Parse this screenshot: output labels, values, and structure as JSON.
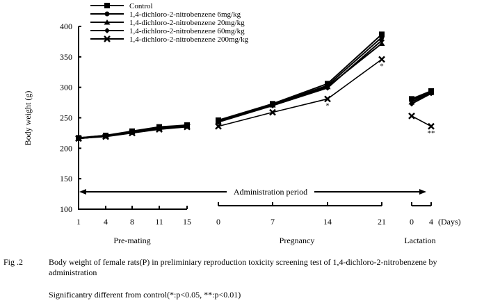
{
  "chart_data": {
    "type": "line",
    "ylabel": "Body weight (g)",
    "ylim": [
      100,
      400
    ],
    "yticks": [
      100,
      150,
      200,
      250,
      300,
      350,
      400
    ],
    "x_unit_label": "(Days)",
    "legend_position": "top-left",
    "segments": [
      {
        "name": "Pre-mating",
        "x": [
          "1",
          "4",
          "8",
          "11",
          "15"
        ]
      },
      {
        "name": "Pregnancy",
        "x": [
          "0",
          "7",
          "14",
          "21"
        ]
      },
      {
        "name": "Lactation",
        "x": [
          "0",
          "4"
        ]
      }
    ],
    "series": [
      {
        "name": "Control",
        "marker": "square",
        "values": [
          [
            217,
            221,
            228,
            235,
            238
          ],
          [
            246,
            273,
            306,
            387
          ],
          [
            281,
            294
          ]
        ]
      },
      {
        "name": "1,4-dichloro-2-nitrobenzene 6mg/kg",
        "marker": "circle",
        "values": [
          [
            217,
            221,
            227,
            234,
            237
          ],
          [
            245,
            272,
            303,
            382
          ],
          [
            279,
            292
          ]
        ]
      },
      {
        "name": "1,4-dichloro-2-nitrobenzene 20mg/kg",
        "marker": "triangle",
        "values": [
          [
            216,
            220,
            227,
            233,
            236
          ],
          [
            244,
            271,
            301,
            372
          ],
          [
            276,
            291
          ]
        ]
      },
      {
        "name": "1,4-dichloro-2-nitrobenzene 60mg/kg",
        "marker": "diamond",
        "values": [
          [
            216,
            220,
            226,
            232,
            236
          ],
          [
            243,
            270,
            299,
            377
          ],
          [
            273,
            290
          ]
        ]
      },
      {
        "name": "1,4-dichloro-2-nitrobenzene 200mg/kg",
        "marker": "cross",
        "values": [
          [
            216,
            219,
            225,
            231,
            235
          ],
          [
            236,
            259,
            281,
            346
          ],
          [
            253,
            236
          ]
        ]
      }
    ],
    "annotations": [
      {
        "text": "*",
        "series": 4,
        "segment": 1,
        "index": 2
      },
      {
        "text": "*",
        "series": 4,
        "segment": 1,
        "index": 3
      },
      {
        "text": "**",
        "series": 4,
        "segment": 2,
        "index": 1
      }
    ],
    "administration_label": "Administration period"
  },
  "caption": {
    "fig_label": "Fig .2",
    "title": "Body weight of female rats(P) in preliminiary reproduction toxicity screening test of 1,4-dichloro-2-nitrobenzene by administration",
    "note": "Significantry different from control(*:p<0.05, **:p<0.01)"
  }
}
